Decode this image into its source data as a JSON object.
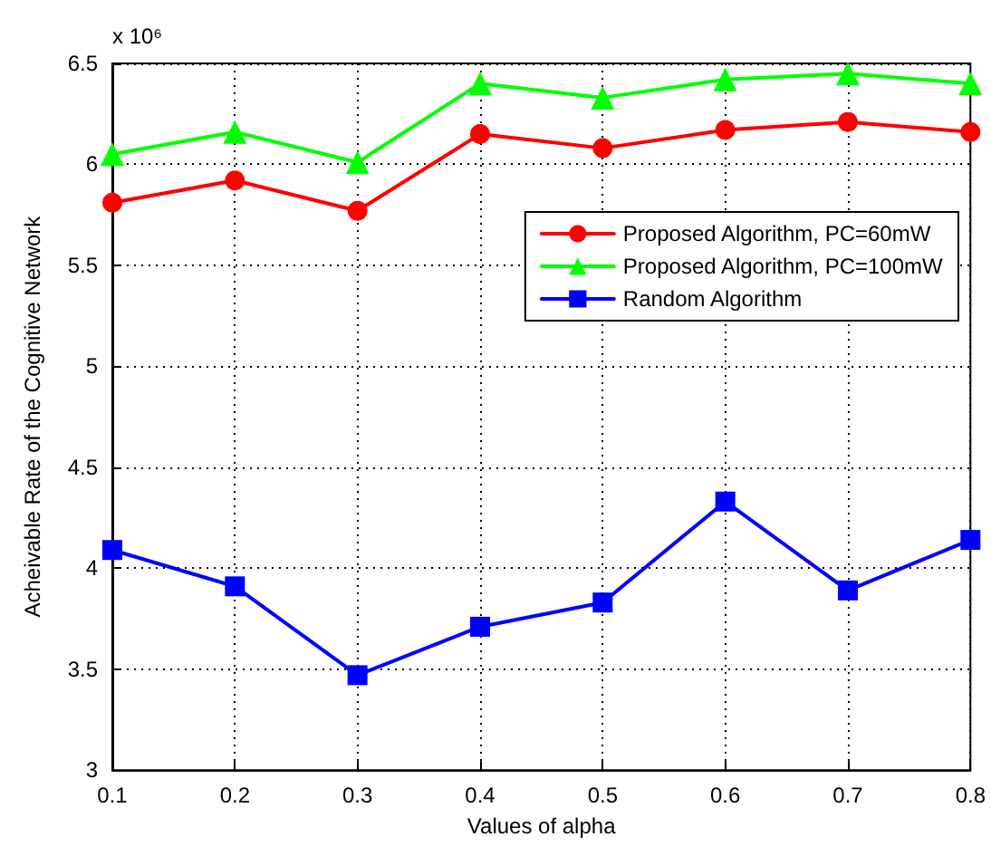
{
  "chart_data": {
    "type": "line",
    "xlabel": "Values of alpha",
    "ylabel": "Acheivable Rate of the Cognitive Network",
    "annotations": [
      "x 10⁶"
    ],
    "x": [
      0.1,
      0.2,
      0.3,
      0.4,
      0.5,
      0.6,
      0.7,
      0.8
    ],
    "series": [
      {
        "name": "Proposed Algorithm, PC=60mW",
        "color": "#ff0000",
        "marker": "circle",
        "values": [
          5.81,
          5.92,
          5.77,
          6.15,
          6.08,
          6.17,
          6.21,
          6.16
        ]
      },
      {
        "name": "Proposed Algorithm, PC=100mW",
        "color": "#00ff00",
        "marker": "triangle",
        "values": [
          6.05,
          6.16,
          6.01,
          6.4,
          6.33,
          6.42,
          6.45,
          6.4
        ]
      },
      {
        "name": "Random Algorithm",
        "color": "#0000ff",
        "marker": "square",
        "values": [
          4.09,
          3.91,
          3.47,
          3.71,
          3.83,
          4.33,
          3.89,
          4.14
        ]
      }
    ],
    "xlim": [
      0.1,
      0.8
    ],
    "xticks": [
      0.1,
      0.2,
      0.3,
      0.4,
      0.5,
      0.6,
      0.7,
      0.8
    ],
    "ylim": [
      3,
      6.5
    ],
    "yticks": [
      3,
      3.5,
      4,
      4.5,
      5,
      5.5,
      6,
      6.5
    ],
    "grid": true,
    "legend": "top right",
    "line_style": "solid"
  }
}
